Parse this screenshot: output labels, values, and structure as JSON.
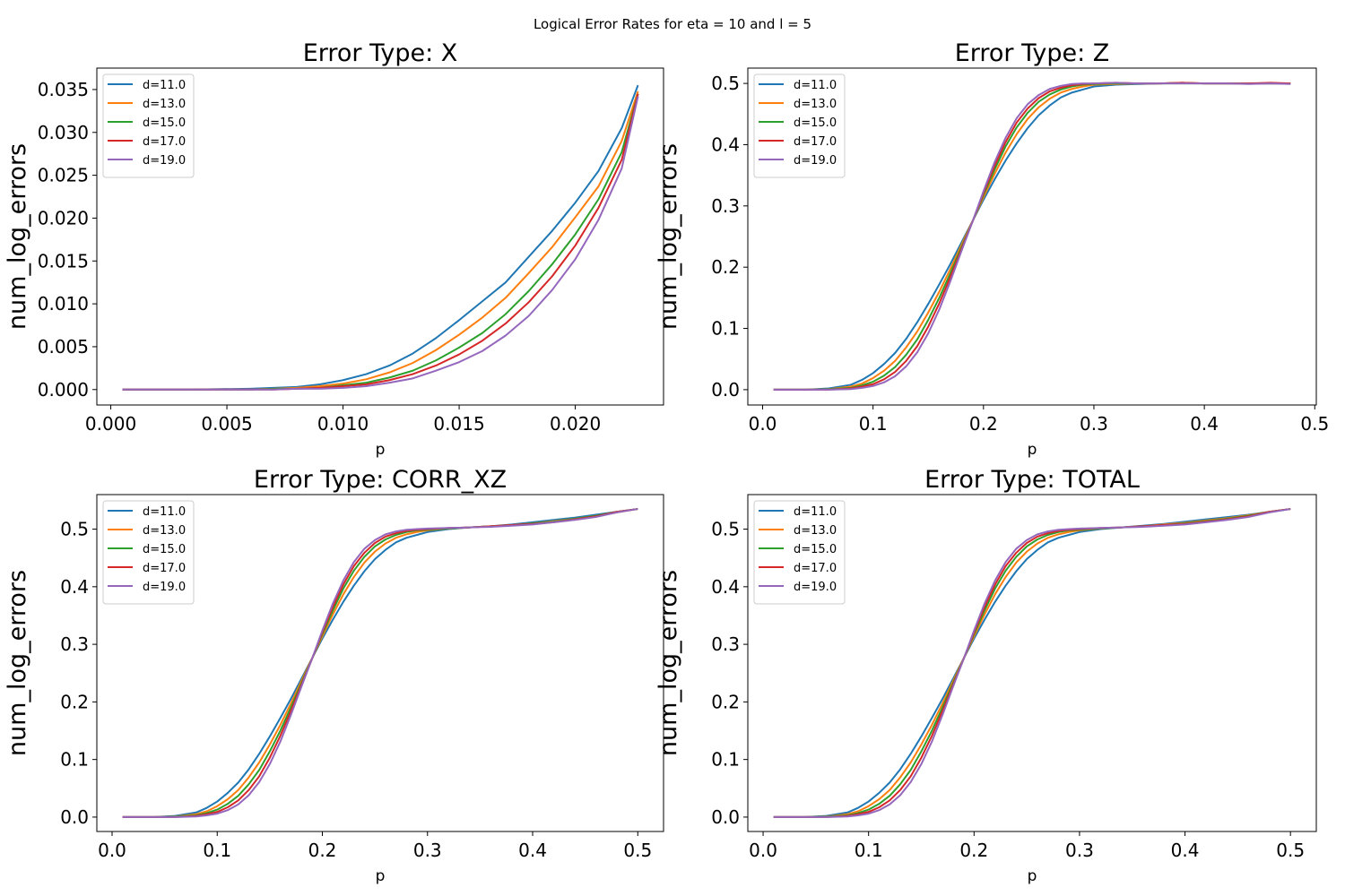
{
  "figure": {
    "suptitle": "Logical Error Rates for eta = 10 and l = 5"
  },
  "colors": {
    "d11": "#1f77b4",
    "d13": "#ff7f0e",
    "d15": "#2ca02c",
    "d17": "#d62728",
    "d19": "#9467bd"
  },
  "chart_data": [
    {
      "type": "line",
      "title": "Error Type: X",
      "xlabel": "p",
      "ylabel": "num_log_errors",
      "xlim": [
        -0.0006,
        0.0238
      ],
      "ylim": [
        -0.0018,
        0.0375
      ],
      "xticks": [
        0.0,
        0.005,
        0.01,
        0.015,
        0.02
      ],
      "xtick_labels": [
        "0.000",
        "0.005",
        "0.010",
        "0.015",
        "0.020"
      ],
      "yticks": [
        0.0,
        0.005,
        0.01,
        0.015,
        0.02,
        0.025,
        0.03,
        0.035
      ],
      "ytick_labels": [
        "0.000",
        "0.005",
        "0.010",
        "0.015",
        "0.020",
        "0.025",
        "0.030",
        "0.035"
      ],
      "grid": false,
      "legend_position": "top-left",
      "x": [
        0.0005,
        0.0035,
        0.006,
        0.007,
        0.008,
        0.009,
        0.01,
        0.011,
        0.012,
        0.013,
        0.014,
        0.015,
        0.016,
        0.017,
        0.018,
        0.019,
        0.02,
        0.021,
        0.022,
        0.0227
      ],
      "series": [
        {
          "name": "d=11.0",
          "color": "#1f77b4",
          "values": [
            0,
            0,
            0.0001,
            0.0002,
            0.0003,
            0.0006,
            0.0011,
            0.0018,
            0.0028,
            0.0042,
            0.006,
            0.0081,
            0.0103,
            0.0125,
            0.0155,
            0.0185,
            0.0218,
            0.0255,
            0.0305,
            0.0355
          ]
        },
        {
          "name": "d=13.0",
          "color": "#ff7f0e",
          "values": [
            0,
            0,
            0,
            0.0001,
            0.0002,
            0.0004,
            0.0007,
            0.0012,
            0.002,
            0.0031,
            0.0046,
            0.0064,
            0.0084,
            0.0107,
            0.0136,
            0.0166,
            0.0201,
            0.0237,
            0.029,
            0.0348
          ]
        },
        {
          "name": "d=15.0",
          "color": "#2ca02c",
          "values": [
            0,
            0,
            0,
            0.0001,
            0.0001,
            0.0002,
            0.0005,
            0.0008,
            0.0014,
            0.0022,
            0.0034,
            0.0049,
            0.0066,
            0.0088,
            0.0115,
            0.0146,
            0.0181,
            0.0222,
            0.0277,
            0.0345
          ]
        },
        {
          "name": "d=17.0",
          "color": "#d62728",
          "values": [
            0,
            0,
            0,
            0,
            0.0001,
            0.0002,
            0.0004,
            0.0006,
            0.0011,
            0.0018,
            0.0028,
            0.0041,
            0.0057,
            0.0077,
            0.0102,
            0.0132,
            0.0168,
            0.0212,
            0.0268,
            0.0345
          ]
        },
        {
          "name": "d=19.0",
          "color": "#9467bd",
          "values": [
            0,
            0,
            0,
            0,
            0.0001,
            0.0001,
            0.0002,
            0.0004,
            0.0008,
            0.0013,
            0.0022,
            0.0032,
            0.0045,
            0.0063,
            0.0086,
            0.0116,
            0.0152,
            0.0198,
            0.0258,
            0.0342
          ]
        }
      ]
    },
    {
      "type": "line",
      "title": "Error Type: Z",
      "xlabel": "p",
      "ylabel": "num_log_errors",
      "xlim": [
        -0.0134,
        0.5014
      ],
      "ylim": [
        -0.025,
        0.525
      ],
      "xticks": [
        0.0,
        0.1,
        0.2,
        0.3,
        0.4,
        0.5
      ],
      "xtick_labels": [
        "0.0",
        "0.1",
        "0.2",
        "0.3",
        "0.4",
        "0.5"
      ],
      "yticks": [
        0.0,
        0.1,
        0.2,
        0.3,
        0.4,
        0.5
      ],
      "ytick_labels": [
        "0.0",
        "0.1",
        "0.2",
        "0.3",
        "0.4",
        "0.5"
      ],
      "grid": false,
      "legend_position": "top-left",
      "x": [
        0.01,
        0.04,
        0.06,
        0.08,
        0.09,
        0.1,
        0.11,
        0.12,
        0.13,
        0.14,
        0.15,
        0.16,
        0.17,
        0.18,
        0.19,
        0.2,
        0.21,
        0.22,
        0.23,
        0.24,
        0.25,
        0.26,
        0.27,
        0.28,
        0.29,
        0.3,
        0.32,
        0.34,
        0.36,
        0.38,
        0.4,
        0.42,
        0.44,
        0.46,
        0.478
      ],
      "series": [
        {
          "name": "d=11.0",
          "color": "#1f77b4",
          "values": [
            0,
            0,
            0.002,
            0.008,
            0.016,
            0.027,
            0.042,
            0.06,
            0.083,
            0.11,
            0.14,
            0.172,
            0.205,
            0.24,
            0.275,
            0.31,
            0.343,
            0.374,
            0.402,
            0.427,
            0.448,
            0.464,
            0.477,
            0.485,
            0.49,
            0.495,
            0.498,
            0.499,
            0.5,
            0.501,
            0.5,
            0.5,
            0.5,
            0.5,
            0.5
          ]
        },
        {
          "name": "d=13.0",
          "color": "#ff7f0e",
          "values": [
            0,
            0,
            0.001,
            0.005,
            0.01,
            0.019,
            0.031,
            0.047,
            0.069,
            0.095,
            0.126,
            0.16,
            0.197,
            0.236,
            0.275,
            0.314,
            0.352,
            0.387,
            0.417,
            0.442,
            0.461,
            0.475,
            0.485,
            0.491,
            0.495,
            0.498,
            0.499,
            0.5,
            0.5,
            0.501,
            0.5,
            0.5,
            0.5,
            0.5,
            0.5
          ]
        },
        {
          "name": "d=15.0",
          "color": "#2ca02c",
          "values": [
            0,
            0,
            0.001,
            0.003,
            0.007,
            0.013,
            0.023,
            0.037,
            0.057,
            0.082,
            0.114,
            0.15,
            0.19,
            0.232,
            0.274,
            0.318,
            0.359,
            0.397,
            0.428,
            0.452,
            0.47,
            0.482,
            0.49,
            0.495,
            0.498,
            0.499,
            0.5,
            0.5,
            0.5,
            0.5,
            0.5,
            0.5,
            0.5,
            0.5,
            0.5
          ]
        },
        {
          "name": "d=17.0",
          "color": "#d62728",
          "values": [
            0,
            0,
            0,
            0.002,
            0.005,
            0.009,
            0.017,
            0.029,
            0.047,
            0.071,
            0.103,
            0.141,
            0.184,
            0.229,
            0.274,
            0.321,
            0.365,
            0.404,
            0.436,
            0.459,
            0.476,
            0.487,
            0.493,
            0.497,
            0.499,
            0.5,
            0.501,
            0.5,
            0.5,
            0.501,
            0.5,
            0.5,
            0.5,
            0.501,
            0.5
          ]
        },
        {
          "name": "d=19.0",
          "color": "#9467bd",
          "values": [
            0,
            0,
            0,
            0.001,
            0.003,
            0.006,
            0.012,
            0.022,
            0.038,
            0.061,
            0.092,
            0.131,
            0.177,
            0.226,
            0.274,
            0.324,
            0.371,
            0.411,
            0.443,
            0.466,
            0.481,
            0.491,
            0.496,
            0.499,
            0.5,
            0.5,
            0.501,
            0.5,
            0.5,
            0.5,
            0.5,
            0.5,
            0.499,
            0.5,
            0.499
          ]
        }
      ]
    },
    {
      "type": "line",
      "title": "Error Type: CORR_XZ",
      "xlabel": "p",
      "ylabel": "num_log_errors",
      "xlim": [
        -0.0145,
        0.5245
      ],
      "ylim": [
        -0.025,
        0.56
      ],
      "xticks": [
        0.0,
        0.1,
        0.2,
        0.3,
        0.4,
        0.5
      ],
      "xtick_labels": [
        "0.0",
        "0.1",
        "0.2",
        "0.3",
        "0.4",
        "0.5"
      ],
      "yticks": [
        0.0,
        0.1,
        0.2,
        0.3,
        0.4,
        0.5
      ],
      "ytick_labels": [
        "0.0",
        "0.1",
        "0.2",
        "0.3",
        "0.4",
        "0.5"
      ],
      "grid": false,
      "legend_position": "top-left",
      "x": [
        0.01,
        0.04,
        0.06,
        0.08,
        0.09,
        0.1,
        0.11,
        0.12,
        0.13,
        0.14,
        0.15,
        0.16,
        0.17,
        0.18,
        0.19,
        0.2,
        0.21,
        0.22,
        0.23,
        0.24,
        0.25,
        0.26,
        0.27,
        0.28,
        0.29,
        0.3,
        0.32,
        0.34,
        0.36,
        0.38,
        0.4,
        0.42,
        0.44,
        0.46,
        0.48,
        0.5
      ],
      "series": [
        {
          "name": "d=11.0",
          "color": "#1f77b4",
          "values": [
            0,
            0,
            0.002,
            0.008,
            0.016,
            0.027,
            0.042,
            0.06,
            0.083,
            0.11,
            0.14,
            0.172,
            0.205,
            0.24,
            0.275,
            0.31,
            0.343,
            0.374,
            0.402,
            0.427,
            0.448,
            0.464,
            0.477,
            0.485,
            0.49,
            0.495,
            0.5,
            0.503,
            0.505,
            0.508,
            0.512,
            0.516,
            0.52,
            0.525,
            0.53,
            0.535
          ]
        },
        {
          "name": "d=13.0",
          "color": "#ff7f0e",
          "values": [
            0,
            0,
            0.001,
            0.005,
            0.01,
            0.019,
            0.031,
            0.047,
            0.069,
            0.095,
            0.126,
            0.16,
            0.197,
            0.236,
            0.275,
            0.314,
            0.352,
            0.387,
            0.417,
            0.442,
            0.461,
            0.475,
            0.485,
            0.491,
            0.495,
            0.498,
            0.501,
            0.503,
            0.505,
            0.507,
            0.51,
            0.514,
            0.518,
            0.523,
            0.529,
            0.535
          ]
        },
        {
          "name": "d=15.0",
          "color": "#2ca02c",
          "values": [
            0,
            0,
            0.001,
            0.003,
            0.007,
            0.013,
            0.023,
            0.037,
            0.057,
            0.082,
            0.114,
            0.15,
            0.19,
            0.232,
            0.274,
            0.318,
            0.359,
            0.397,
            0.428,
            0.452,
            0.47,
            0.482,
            0.49,
            0.495,
            0.498,
            0.499,
            0.501,
            0.503,
            0.505,
            0.507,
            0.51,
            0.513,
            0.518,
            0.523,
            0.53,
            0.535
          ]
        },
        {
          "name": "d=17.0",
          "color": "#d62728",
          "values": [
            0,
            0,
            0,
            0.002,
            0.005,
            0.009,
            0.017,
            0.029,
            0.047,
            0.071,
            0.103,
            0.141,
            0.184,
            0.229,
            0.274,
            0.321,
            0.365,
            0.404,
            0.436,
            0.459,
            0.476,
            0.487,
            0.493,
            0.497,
            0.499,
            0.5,
            0.502,
            0.503,
            0.505,
            0.507,
            0.509,
            0.512,
            0.517,
            0.522,
            0.53,
            0.535
          ]
        },
        {
          "name": "d=19.0",
          "color": "#9467bd",
          "values": [
            0,
            0,
            0,
            0.001,
            0.003,
            0.006,
            0.012,
            0.022,
            0.038,
            0.061,
            0.092,
            0.131,
            0.177,
            0.226,
            0.274,
            0.324,
            0.371,
            0.411,
            0.443,
            0.466,
            0.481,
            0.491,
            0.496,
            0.499,
            0.5,
            0.501,
            0.502,
            0.503,
            0.504,
            0.506,
            0.508,
            0.512,
            0.516,
            0.521,
            0.529,
            0.535
          ]
        }
      ]
    },
    {
      "type": "line",
      "title": "Error Type: TOTAL",
      "xlabel": "p",
      "ylabel": "num_log_errors",
      "xlim": [
        -0.0145,
        0.5245
      ],
      "ylim": [
        -0.025,
        0.56
      ],
      "xticks": [
        0.0,
        0.1,
        0.2,
        0.3,
        0.4,
        0.5
      ],
      "xtick_labels": [
        "0.0",
        "0.1",
        "0.2",
        "0.3",
        "0.4",
        "0.5"
      ],
      "yticks": [
        0.0,
        0.1,
        0.2,
        0.3,
        0.4,
        0.5
      ],
      "ytick_labels": [
        "0.0",
        "0.1",
        "0.2",
        "0.3",
        "0.4",
        "0.5"
      ],
      "grid": false,
      "legend_position": "top-left",
      "x": [
        0.01,
        0.04,
        0.06,
        0.08,
        0.09,
        0.1,
        0.11,
        0.12,
        0.13,
        0.14,
        0.15,
        0.16,
        0.17,
        0.18,
        0.19,
        0.2,
        0.21,
        0.22,
        0.23,
        0.24,
        0.25,
        0.26,
        0.27,
        0.28,
        0.29,
        0.3,
        0.32,
        0.34,
        0.36,
        0.38,
        0.4,
        0.42,
        0.44,
        0.46,
        0.48,
        0.5
      ],
      "series": [
        {
          "name": "d=11.0",
          "color": "#1f77b4",
          "values": [
            0,
            0,
            0.002,
            0.008,
            0.016,
            0.027,
            0.042,
            0.06,
            0.083,
            0.11,
            0.14,
            0.172,
            0.205,
            0.24,
            0.275,
            0.31,
            0.343,
            0.374,
            0.402,
            0.427,
            0.448,
            0.464,
            0.477,
            0.485,
            0.49,
            0.495,
            0.5,
            0.503,
            0.506,
            0.509,
            0.513,
            0.517,
            0.521,
            0.525,
            0.53,
            0.535
          ]
        },
        {
          "name": "d=13.0",
          "color": "#ff7f0e",
          "values": [
            0,
            0,
            0.001,
            0.005,
            0.01,
            0.019,
            0.031,
            0.047,
            0.069,
            0.095,
            0.126,
            0.16,
            0.197,
            0.236,
            0.275,
            0.314,
            0.352,
            0.387,
            0.417,
            0.442,
            0.461,
            0.475,
            0.485,
            0.491,
            0.495,
            0.498,
            0.501,
            0.503,
            0.505,
            0.508,
            0.511,
            0.515,
            0.519,
            0.524,
            0.53,
            0.535
          ]
        },
        {
          "name": "d=15.0",
          "color": "#2ca02c",
          "values": [
            0,
            0,
            0.001,
            0.003,
            0.007,
            0.013,
            0.023,
            0.037,
            0.057,
            0.082,
            0.114,
            0.15,
            0.19,
            0.232,
            0.274,
            0.318,
            0.359,
            0.397,
            0.428,
            0.452,
            0.47,
            0.482,
            0.49,
            0.495,
            0.498,
            0.499,
            0.501,
            0.503,
            0.505,
            0.507,
            0.51,
            0.514,
            0.518,
            0.523,
            0.53,
            0.535
          ]
        },
        {
          "name": "d=17.0",
          "color": "#d62728",
          "values": [
            0,
            0,
            0,
            0.002,
            0.005,
            0.009,
            0.017,
            0.029,
            0.047,
            0.071,
            0.103,
            0.141,
            0.184,
            0.229,
            0.274,
            0.321,
            0.365,
            0.404,
            0.436,
            0.459,
            0.476,
            0.487,
            0.493,
            0.497,
            0.499,
            0.5,
            0.502,
            0.503,
            0.505,
            0.507,
            0.509,
            0.513,
            0.517,
            0.522,
            0.53,
            0.535
          ]
        },
        {
          "name": "d=19.0",
          "color": "#9467bd",
          "values": [
            0,
            0,
            0,
            0.001,
            0.003,
            0.006,
            0.012,
            0.022,
            0.038,
            0.061,
            0.092,
            0.131,
            0.177,
            0.226,
            0.274,
            0.324,
            0.371,
            0.411,
            0.443,
            0.466,
            0.481,
            0.491,
            0.496,
            0.499,
            0.5,
            0.501,
            0.502,
            0.503,
            0.504,
            0.506,
            0.508,
            0.512,
            0.516,
            0.521,
            0.529,
            0.535
          ]
        }
      ]
    }
  ]
}
